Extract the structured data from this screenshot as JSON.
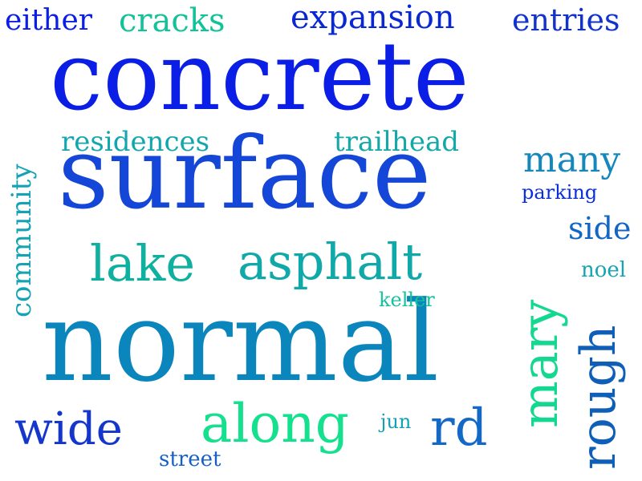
{
  "words": [
    {
      "text": "concrete",
      "color": "#0a1ee6"
    },
    {
      "text": "surface",
      "color": "#1446d8"
    },
    {
      "text": "normal",
      "color": "#0a86bc"
    },
    {
      "text": "asphalt",
      "color": "#10a8a8"
    },
    {
      "text": "lake",
      "color": "#10b0a0"
    },
    {
      "text": "along",
      "color": "#14e08e"
    },
    {
      "text": "wide",
      "color": "#1436cc"
    },
    {
      "text": "rd",
      "color": "#1468c6"
    },
    {
      "text": "mary",
      "color": "#14d890"
    },
    {
      "text": "rough",
      "color": "#0f5fb8"
    },
    {
      "text": "community",
      "color": "#14a2b4"
    },
    {
      "text": "either",
      "color": "#0a1ee6"
    },
    {
      "text": "cracks",
      "color": "#14c29a"
    },
    {
      "text": "expansion",
      "color": "#0a28d2"
    },
    {
      "text": "entries",
      "color": "#1232cc"
    },
    {
      "text": "residences",
      "color": "#14a6ae"
    },
    {
      "text": "trailhead",
      "color": "#14a8a8"
    },
    {
      "text": "many",
      "color": "#1488bc"
    },
    {
      "text": "parking",
      "color": "#0a2edc"
    },
    {
      "text": "side",
      "color": "#1466c4"
    },
    {
      "text": "noel",
      "color": "#14a4b2"
    },
    {
      "text": "keller",
      "color": "#14c29e"
    },
    {
      "text": "jun",
      "color": "#14a0b4"
    },
    {
      "text": "street",
      "color": "#1460c6"
    }
  ]
}
